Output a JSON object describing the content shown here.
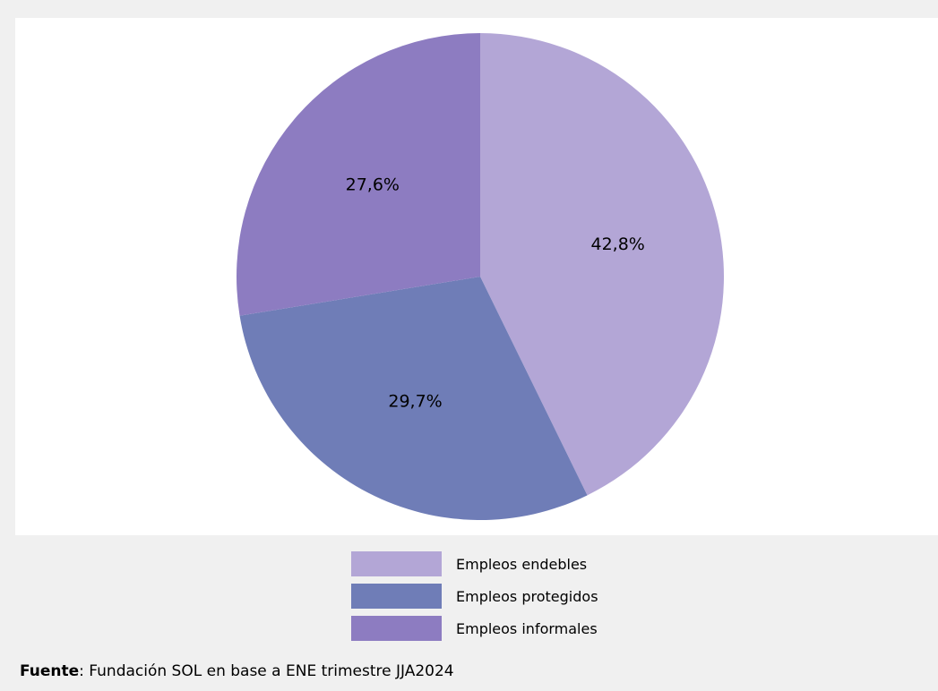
{
  "chart_data": {
    "type": "pie",
    "title": "",
    "slices": [
      {
        "name": "Empleos endebles",
        "value": 42.8,
        "label": "42,8%",
        "color": "#b3a6d6"
      },
      {
        "name": "Empleos protegidos",
        "value": 29.7,
        "label": "29,7%",
        "color": "#6f7db7"
      },
      {
        "name": "Empleos informales",
        "value": 27.6,
        "label": "27,6%",
        "color": "#8d7cc1"
      }
    ],
    "legend_placement": "bottom-center",
    "start_angle": "top",
    "direction": "clockwise"
  },
  "source": {
    "label": "Fuente",
    "text": ": Fundación SOL en base a ENE trimestre JJA2024"
  }
}
